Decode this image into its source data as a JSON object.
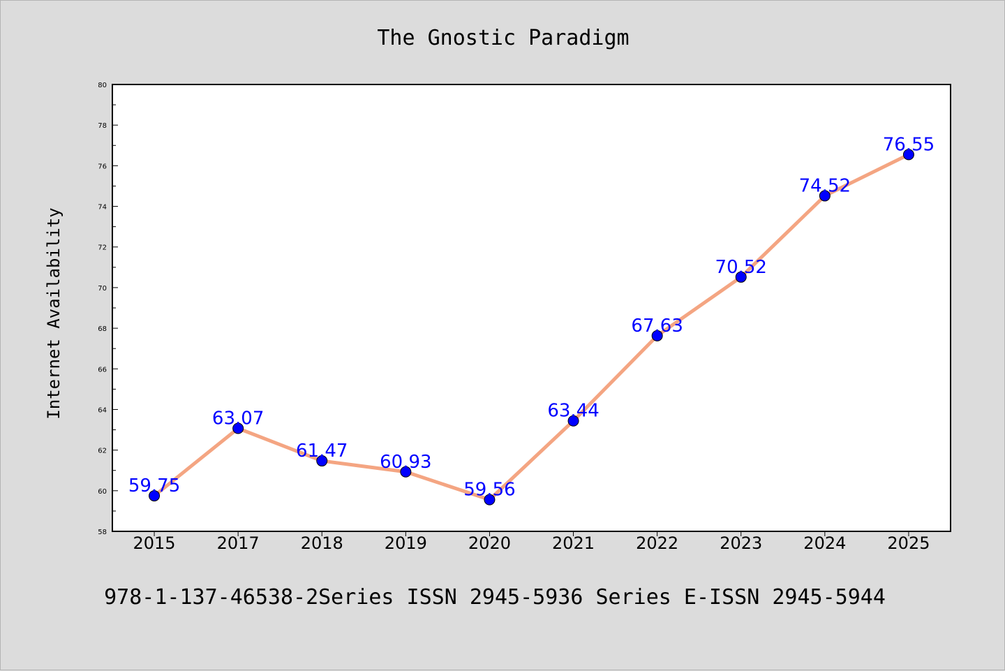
{
  "chart_data": {
    "type": "line",
    "title": "The Gnostic Paradigm",
    "xlabel": "",
    "ylabel": "Internet Availability",
    "categories": [
      "2015",
      "2017",
      "2018",
      "2019",
      "2020",
      "2021",
      "2022",
      "2023",
      "2024",
      "2025"
    ],
    "values": [
      59.75,
      63.07,
      61.47,
      60.93,
      59.56,
      63.44,
      67.63,
      70.52,
      74.52,
      76.55
    ],
    "data_labels": [
      "59.75",
      "63.07",
      "61.47",
      "60.93",
      "59.56",
      "63.44",
      "67.63",
      "70.52",
      "74.52",
      "76.55"
    ],
    "ylim": [
      58,
      80
    ],
    "yticks": [
      58,
      60,
      62,
      64,
      66,
      68,
      70,
      72,
      74,
      76,
      78,
      80
    ],
    "grid": false,
    "line_color": "#f4a582",
    "marker_color": "#0000ff",
    "label_color": "#0000ff",
    "plot_background": "#ffffff",
    "figure_background": "#dcdcdc"
  },
  "footer": {
    "text": "978-1-137-46538-2Series ISSN 2945-5936 Series E-ISSN 2945-5944"
  }
}
